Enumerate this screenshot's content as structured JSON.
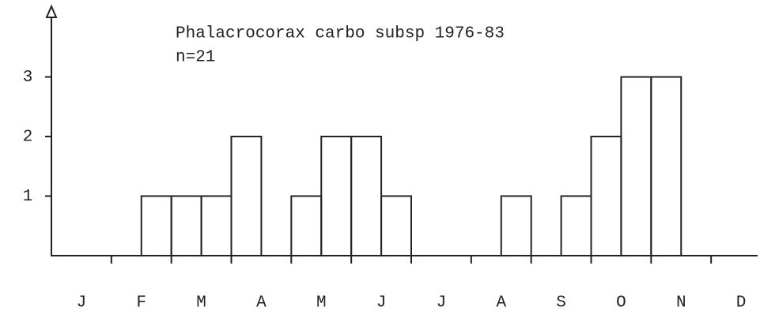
{
  "chart_data": {
    "type": "histogram",
    "title": "Phalacrocorax carbo subsp 1976-83",
    "subtitle": "n=21",
    "bins": [
      0,
      1,
      2,
      3,
      4,
      5,
      6,
      7,
      8,
      9,
      10,
      11,
      12,
      13,
      14,
      15,
      16,
      17,
      18,
      19,
      20,
      21,
      22,
      23,
      24
    ],
    "counts": [
      0,
      0,
      0,
      1,
      1,
      1,
      2,
      0,
      1,
      2,
      2,
      1,
      0,
      0,
      0,
      1,
      0,
      1,
      2,
      3,
      3,
      0,
      0,
      0
    ],
    "color": "#222222",
    "xlim": [
      0,
      24
    ],
    "xticks": [
      {
        "value": 1,
        "label": "J"
      },
      {
        "value": 3,
        "label": "F"
      },
      {
        "value": 5,
        "label": "M"
      },
      {
        "value": 7,
        "label": "A"
      },
      {
        "value": 9,
        "label": "M"
      },
      {
        "value": 11,
        "label": "J"
      },
      {
        "value": 13,
        "label": "J"
      },
      {
        "value": 15,
        "label": "A"
      },
      {
        "value": 17,
        "label": "S"
      },
      {
        "value": 19,
        "label": "O"
      },
      {
        "value": 21,
        "label": "N"
      },
      {
        "value": 23,
        "label": "D"
      }
    ],
    "ylim": [
      0,
      4
    ],
    "yticks": [
      1,
      2,
      3
    ]
  }
}
